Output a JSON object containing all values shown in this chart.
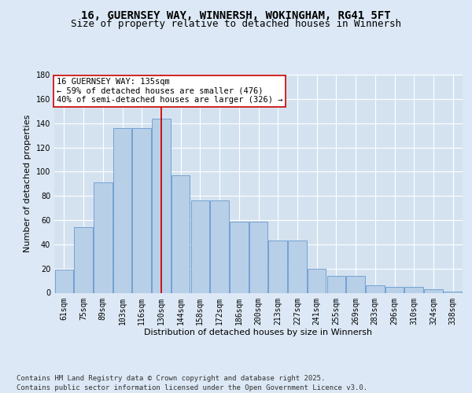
{
  "title_line1": "16, GUERNSEY WAY, WINNERSH, WOKINGHAM, RG41 5FT",
  "title_line2": "Size of property relative to detached houses in Winnersh",
  "xlabel": "Distribution of detached houses by size in Winnersh",
  "ylabel": "Number of detached properties",
  "categories": [
    "61sqm",
    "75sqm",
    "89sqm",
    "103sqm",
    "116sqm",
    "130sqm",
    "144sqm",
    "158sqm",
    "172sqm",
    "186sqm",
    "200sqm",
    "213sqm",
    "227sqm",
    "241sqm",
    "255sqm",
    "269sqm",
    "283sqm",
    "296sqm",
    "310sqm",
    "324sqm",
    "338sqm"
  ],
  "values": [
    19,
    54,
    91,
    136,
    136,
    144,
    97,
    76,
    76,
    59,
    59,
    43,
    43,
    20,
    14,
    14,
    6,
    5,
    5,
    3,
    1
  ],
  "bar_color": "#b8cfe8",
  "bar_edge_color": "#6699cc",
  "vline_index": 5.0,
  "vline_color": "#cc0000",
  "annotation_text": "16 GUERNSEY WAY: 135sqm\n← 59% of detached houses are smaller (476)\n40% of semi-detached houses are larger (326) →",
  "annotation_box_facecolor": "#ffffff",
  "annotation_box_edgecolor": "#cc0000",
  "fig_facecolor": "#dce8f5",
  "ax_facecolor": "#d4e2f0",
  "grid_color": "#ffffff",
  "ylim": [
    0,
    180
  ],
  "yticks": [
    0,
    20,
    40,
    60,
    80,
    100,
    120,
    140,
    160,
    180
  ],
  "footer": "Contains HM Land Registry data © Crown copyright and database right 2025.\nContains public sector information licensed under the Open Government Licence v3.0.",
  "title_fontsize": 10,
  "subtitle_fontsize": 9,
  "ylabel_fontsize": 8,
  "xlabel_fontsize": 8,
  "tick_fontsize": 7,
  "annotation_fontsize": 7.5,
  "footer_fontsize": 6.5
}
